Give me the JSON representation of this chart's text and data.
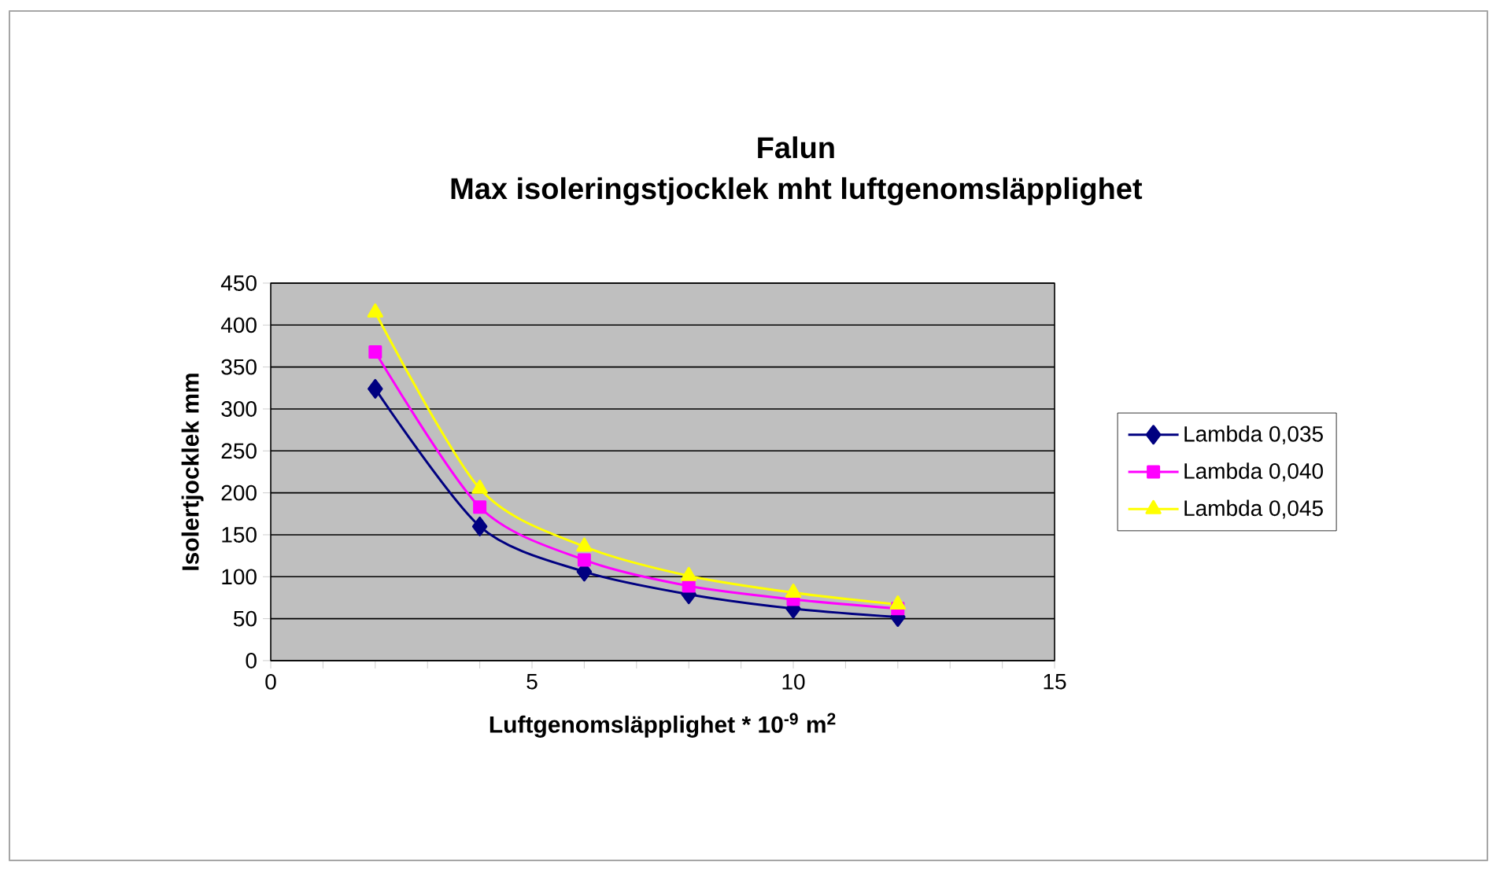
{
  "chart_data": {
    "type": "line",
    "title": "Falun",
    "subtitle": "Max isoleringstjocklek mht luftgenomsläpplighet",
    "xlabel": "Luftgenomsläpplighet * 10$^{-9}$ m$^{2}$",
    "ylabel": "Isolertjocklek mm",
    "x": [
      2,
      4,
      6,
      8,
      10,
      12
    ],
    "series": [
      {
        "name": "Lambda 0,035",
        "color": "#000080",
        "marker": "diamond",
        "values": [
          324,
          160,
          106,
          79,
          62,
          52
        ]
      },
      {
        "name": "Lambda 0,040",
        "color": "#ff00ff",
        "marker": "square",
        "values": [
          368,
          183,
          120,
          89,
          73,
          62
        ]
      },
      {
        "name": "Lambda 0,045",
        "color": "#ffff00",
        "marker": "triangle",
        "values": [
          415,
          205,
          136,
          101,
          81,
          67
        ]
      }
    ],
    "xlim": [
      0,
      15
    ],
    "ylim": [
      0,
      450
    ],
    "xticks": [
      0,
      {
        "value": 1,
        "label": null
      },
      {
        "value": 2,
        "label": null
      },
      {
        "value": 3,
        "label": null
      },
      {
        "value": 4,
        "label": null
      },
      5,
      {
        "value": 6,
        "label": null
      },
      {
        "value": 7,
        "label": null
      },
      {
        "value": 8,
        "label": null
      },
      {
        "value": 9,
        "label": null
      },
      10,
      {
        "value": 11,
        "label": null
      },
      {
        "value": 12,
        "label": null
      },
      {
        "value": 13,
        "label": null
      },
      {
        "value": 14,
        "label": null
      },
      15
    ],
    "yticks": [
      0,
      50,
      100,
      150,
      200,
      250,
      300,
      350,
      400,
      450
    ],
    "grid": "y",
    "legend": "right"
  }
}
